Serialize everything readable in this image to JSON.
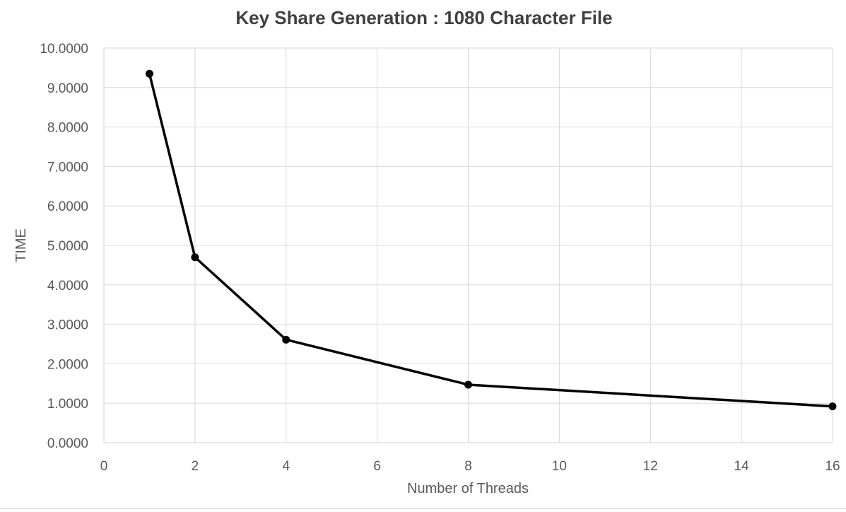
{
  "chart_data": {
    "type": "line",
    "title": "Key Share Generation : 1080 Character File",
    "xlabel": "Number of Threads",
    "ylabel": "TIME",
    "x": [
      1,
      2,
      4,
      8,
      16
    ],
    "series": [
      {
        "values": [
          9.35,
          4.7,
          2.61,
          1.47,
          0.92
        ]
      }
    ],
    "xlim": [
      0,
      16
    ],
    "ylim": [
      0,
      10
    ],
    "x_ticks": [
      "0",
      "2",
      "4",
      "6",
      "8",
      "10",
      "12",
      "14",
      "16"
    ],
    "y_ticks": [
      "0.0000",
      "1.0000",
      "2.0000",
      "3.0000",
      "4.0000",
      "5.0000",
      "6.0000",
      "7.0000",
      "8.0000",
      "9.0000",
      "10.0000"
    ],
    "grid": true,
    "legend": "none",
    "line_color": "#000000",
    "grid_color": "#d9d9d9",
    "text_color": "#595959",
    "title_color": "#404040"
  }
}
